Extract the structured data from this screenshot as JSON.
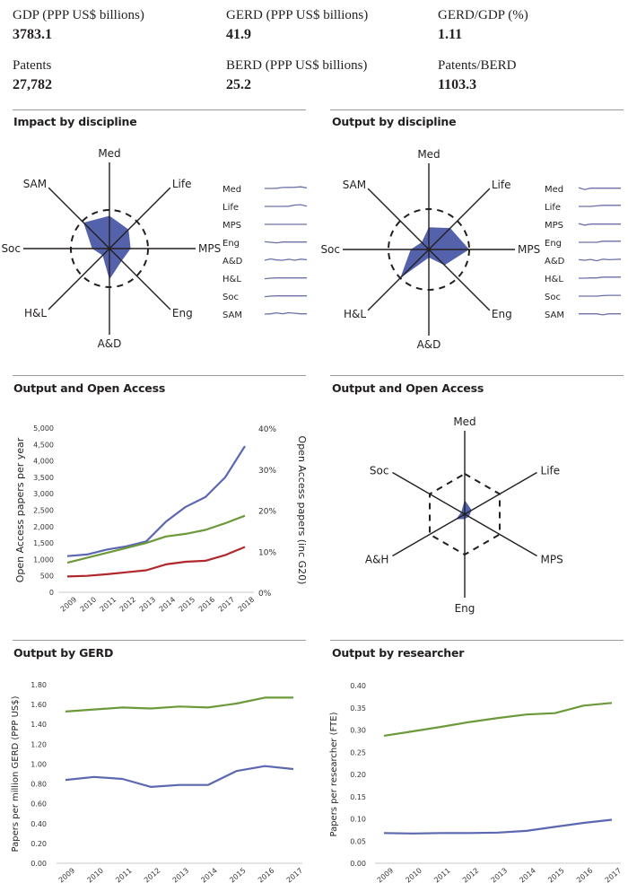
{
  "stats": [
    {
      "label": "GDP (PPP US$ billions)",
      "value": "3783.1"
    },
    {
      "label": "GERD (PPP US$ billions)",
      "value": "41.9"
    },
    {
      "label": "GERD/GDP (%)",
      "value": "1.11"
    },
    {
      "label": "Patents",
      "value": "27,782"
    },
    {
      "label": "BERD (PPP US$ billions)",
      "value": "25.2"
    },
    {
      "label": "Patents/BERD",
      "value": "1103.3"
    }
  ],
  "panels": {
    "impact_title": "Impact by discipline",
    "output_title": "Output by discipline",
    "oa_title": "Output and Open Access",
    "oa_radar_title": "Output and Open Access",
    "gerd_title": "Output by GERD",
    "researcher_title": "Output by researcher"
  },
  "colors": {
    "blue": "#5b67b0",
    "fill": "#4b5aa8",
    "green": "#6c9a3a",
    "red": "#b0282d",
    "axis": "#231f20",
    "spark": "#6a72a8"
  },
  "chart_data": [
    {
      "id": "impact",
      "type": "radar",
      "title": "Impact by discipline",
      "axes": [
        "Med",
        "Life",
        "MPS",
        "Eng",
        "A&D",
        "H&L",
        "Soc",
        "SAM"
      ],
      "reference_value": 1.0,
      "values": [
        0.85,
        0.7,
        0.55,
        0.45,
        0.8,
        0.25,
        0.45,
        0.95
      ],
      "sparklines": {
        "labels": [
          "Med",
          "Life",
          "MPS",
          "Eng",
          "A&D",
          "H&L",
          "Soc",
          "SAM"
        ],
        "series": [
          [
            0.0,
            0.0,
            0.05,
            0.35,
            0.4,
            0.45,
            0.6,
            0.2
          ],
          [
            0.0,
            0.0,
            0.0,
            0.0,
            0.05,
            0.5,
            0.65,
            0.1
          ],
          [
            0.0,
            0.0,
            0.0,
            0.0,
            0.0,
            0.0,
            0.0,
            0.0
          ],
          [
            0.2,
            0.0,
            -0.2,
            0.1,
            0.1,
            0.1,
            0.1,
            0.1
          ],
          [
            0.0,
            0.5,
            0.1,
            0.0,
            0.35,
            0.0,
            0.4,
            0.2
          ],
          [
            -0.2,
            0.0,
            0.1,
            0.1,
            0.1,
            0.1,
            0.1,
            0.1
          ],
          [
            -0.2,
            0.0,
            0.1,
            0.1,
            0.1,
            0.1,
            0.1,
            0.1
          ],
          [
            0.0,
            0.1,
            0.45,
            0.1,
            0.5,
            0.3,
            0.1,
            0.1
          ]
        ]
      }
    },
    {
      "id": "output",
      "type": "radar",
      "title": "Output by discipline",
      "axes": [
        "Med",
        "Life",
        "MPS",
        "Eng",
        "A&D",
        "H&L",
        "Soc",
        "SAM"
      ],
      "reference_value": 1.0,
      "values": [
        0.55,
        0.75,
        1.0,
        0.55,
        0.2,
        1.0,
        0.45,
        0.25
      ],
      "sparklines": {
        "labels": [
          "Med",
          "Life",
          "MPS",
          "Eng",
          "A&D",
          "H&L",
          "Soc",
          "SAM"
        ],
        "series": [
          [
            0.3,
            -0.4,
            0.1,
            0.1,
            0.1,
            0.1,
            0.1,
            0.1
          ],
          [
            0.0,
            0.0,
            0.0,
            0.2,
            0.4,
            0.4,
            0.4,
            0.4
          ],
          [
            0.3,
            -0.3,
            0.1,
            0.1,
            0.1,
            0.1,
            0.1,
            0.1
          ],
          [
            0.0,
            0.0,
            0.0,
            0.0,
            0.4,
            0.4,
            0.4,
            0.4
          ],
          [
            0.2,
            0.0,
            0.3,
            -0.2,
            0.4,
            0.2,
            0.3,
            0.4
          ],
          [
            0.0,
            0.0,
            0.1,
            0.1,
            0.4,
            0.4,
            0.4,
            0.4
          ],
          [
            0.0,
            0.0,
            0.0,
            0.0,
            0.2,
            0.3,
            0.3,
            0.3
          ],
          [
            0.1,
            0.1,
            0.1,
            0.1,
            -0.3,
            0.1,
            0.1,
            0.1
          ]
        ]
      }
    },
    {
      "id": "oa",
      "type": "line",
      "title": "Output and Open Access",
      "x": [
        "2009",
        "2010",
        "2011",
        "2012",
        "2013",
        "2014",
        "2015",
        "2016",
        "2017",
        "2018"
      ],
      "ylabel": "Open Access papers per year",
      "y2label": "Open Access papers (inc G20)",
      "ylim": [
        0,
        5000
      ],
      "y2lim": [
        0,
        40
      ],
      "yticks": [
        "0",
        "500",
        "1,000",
        "1,500",
        "2,000",
        "2,500",
        "3,000",
        "3,500",
        "4,000",
        "4,500",
        "5,000"
      ],
      "y2ticks": [
        "0%",
        "10%",
        "20%",
        "30%",
        "40%"
      ],
      "series": [
        {
          "name": "blue",
          "color": "#5b67b0",
          "values": [
            1100,
            1150,
            1300,
            1400,
            1550,
            2150,
            2600,
            2900,
            3500,
            4450
          ]
        },
        {
          "name": "green",
          "color": "#6c9a3a",
          "values": [
            900,
            1050,
            1200,
            1350,
            1500,
            1700,
            1780,
            1900,
            2100,
            2330
          ]
        },
        {
          "name": "red",
          "color": "#b0282d",
          "values": [
            480,
            500,
            550,
            610,
            670,
            850,
            930,
            960,
            1130,
            1380
          ]
        }
      ]
    },
    {
      "id": "oa_radar",
      "type": "radar",
      "title": "Output and Open Access",
      "axes": [
        "Med",
        "Life",
        "MPS",
        "Eng",
        "A&H",
        "Soc"
      ],
      "reference_value": 1.0,
      "values": [
        0.35,
        0.2,
        0.12,
        0.12,
        0.25,
        0.1
      ]
    },
    {
      "id": "gerd",
      "type": "line",
      "title": "Output by GERD",
      "x": [
        "2009",
        "2010",
        "2011",
        "2012",
        "2013",
        "2014",
        "2015",
        "2016",
        "2017"
      ],
      "ylabel": "Papers per million GERD (PPP US$)",
      "ylim": [
        0,
        1.8
      ],
      "yticks": [
        "0.00",
        "0.20",
        "0.40",
        "0.60",
        "0.80",
        "1.00",
        "1.20",
        "1.40",
        "1.60",
        "1.80"
      ],
      "series": [
        {
          "name": "green",
          "color": "#6c9a3a",
          "values": [
            1.53,
            1.55,
            1.57,
            1.56,
            1.58,
            1.57,
            1.61,
            1.67,
            1.67
          ]
        },
        {
          "name": "blue",
          "color": "#5b67b0",
          "values": [
            0.84,
            0.87,
            0.85,
            0.77,
            0.79,
            0.79,
            0.93,
            0.98,
            0.95
          ]
        }
      ]
    },
    {
      "id": "researcher",
      "type": "line",
      "title": "Output by researcher",
      "x": [
        "2009",
        "2010",
        "2011",
        "2012",
        "2013",
        "2014",
        "2015",
        "2016",
        "2017"
      ],
      "ylabel": "Papers per researcher (FTE)",
      "ylim": [
        0,
        0.4
      ],
      "yticks": [
        "0.00",
        "0.05",
        "0.10",
        "0.15",
        "0.20",
        "0.25",
        "0.30",
        "0.35",
        "0.40"
      ],
      "series": [
        {
          "name": "green",
          "color": "#6c9a3a",
          "values": [
            0.287,
            0.297,
            0.307,
            0.318,
            0.327,
            0.335,
            0.338,
            0.355,
            0.361
          ]
        },
        {
          "name": "blue",
          "color": "#5b67b0",
          "values": [
            0.068,
            0.067,
            0.068,
            0.068,
            0.069,
            0.073,
            0.082,
            0.091,
            0.098
          ]
        }
      ]
    }
  ]
}
